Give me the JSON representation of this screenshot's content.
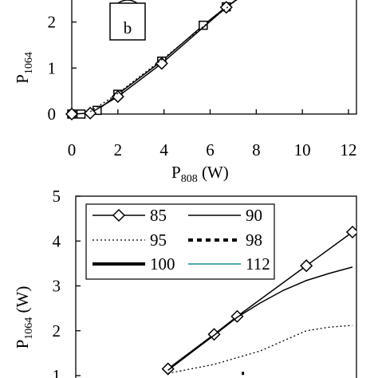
{
  "chart_data": [
    {
      "type": "line",
      "panel_label": "b",
      "xlabel_base": "P",
      "xlabel_sub": "808",
      "xlabel_unit": " (W)",
      "ylabel_base": "P",
      "ylabel_sub": "1064",
      "xlim": [
        0,
        12
      ],
      "ylim": [
        0,
        2.6
      ],
      "x_ticks": [
        "0",
        "2",
        "4",
        "6",
        "8",
        "10",
        "12"
      ],
      "y_ticks": [
        "0",
        "1",
        "2"
      ],
      "grid": false,
      "series": [
        {
          "marker": "square",
          "line": "solid",
          "x": [
            0,
            0.4,
            1.1,
            2,
            3.9,
            5.7,
            6.7,
            7.5
          ],
          "y": [
            0,
            0,
            0.08,
            0.43,
            1.15,
            1.93,
            2.33,
            2.6
          ]
        },
        {
          "marker": "diamond",
          "line": "solid",
          "x": [
            0,
            0.8,
            2,
            3.9,
            6.7,
            7.5
          ],
          "y": [
            0,
            0.02,
            0.38,
            1.1,
            2.32,
            2.62
          ]
        },
        {
          "marker": "none",
          "line": "dotted",
          "x": [
            0.8,
            2,
            4,
            6,
            7.5
          ],
          "y": [
            0.05,
            0.45,
            1.22,
            2.02,
            2.62
          ]
        }
      ]
    },
    {
      "type": "line",
      "ylabel_base": "P",
      "ylabel_sub": "1064",
      "ylabel_unit": " (W)",
      "ylim": [
        1,
        5
      ],
      "xlim": [
        0,
        12
      ],
      "y_ticks": [
        "1",
        "2",
        "3",
        "4",
        "5"
      ],
      "grid": false,
      "legend_position": "top-left",
      "series": [
        {
          "name": "85",
          "marker": "diamond",
          "line": "solid",
          "color": "#000000",
          "x": [
            4,
            6,
            7,
            10,
            12
          ],
          "y": [
            1.15,
            1.92,
            2.32,
            3.45,
            4.2
          ]
        },
        {
          "name": "90",
          "marker": "none",
          "line": "solid",
          "color": "#000000",
          "x": [
            4,
            6,
            7,
            8,
            9,
            10,
            11,
            12
          ],
          "y": [
            1.12,
            1.9,
            2.3,
            2.62,
            2.9,
            3.12,
            3.28,
            3.42
          ]
        },
        {
          "name": "95",
          "marker": "none",
          "line": "dotted",
          "color": "#000000",
          "x": [
            4,
            6,
            8,
            10,
            11,
            12
          ],
          "y": [
            1.05,
            1.25,
            1.55,
            2.0,
            2.08,
            2.12
          ]
        },
        {
          "name": "98",
          "marker": "none",
          "line": "dashed-bold",
          "color": "#000000",
          "x": [
            7.2,
            7.3
          ],
          "y": [
            1.05,
            1.05
          ]
        },
        {
          "name": "100",
          "marker": "none",
          "line": "solid-bold",
          "color": "#000000",
          "x": [],
          "y": []
        },
        {
          "name": "112",
          "marker": "none",
          "line": "solid",
          "color": "#1a8a8a",
          "x": [],
          "y": []
        }
      ]
    }
  ]
}
